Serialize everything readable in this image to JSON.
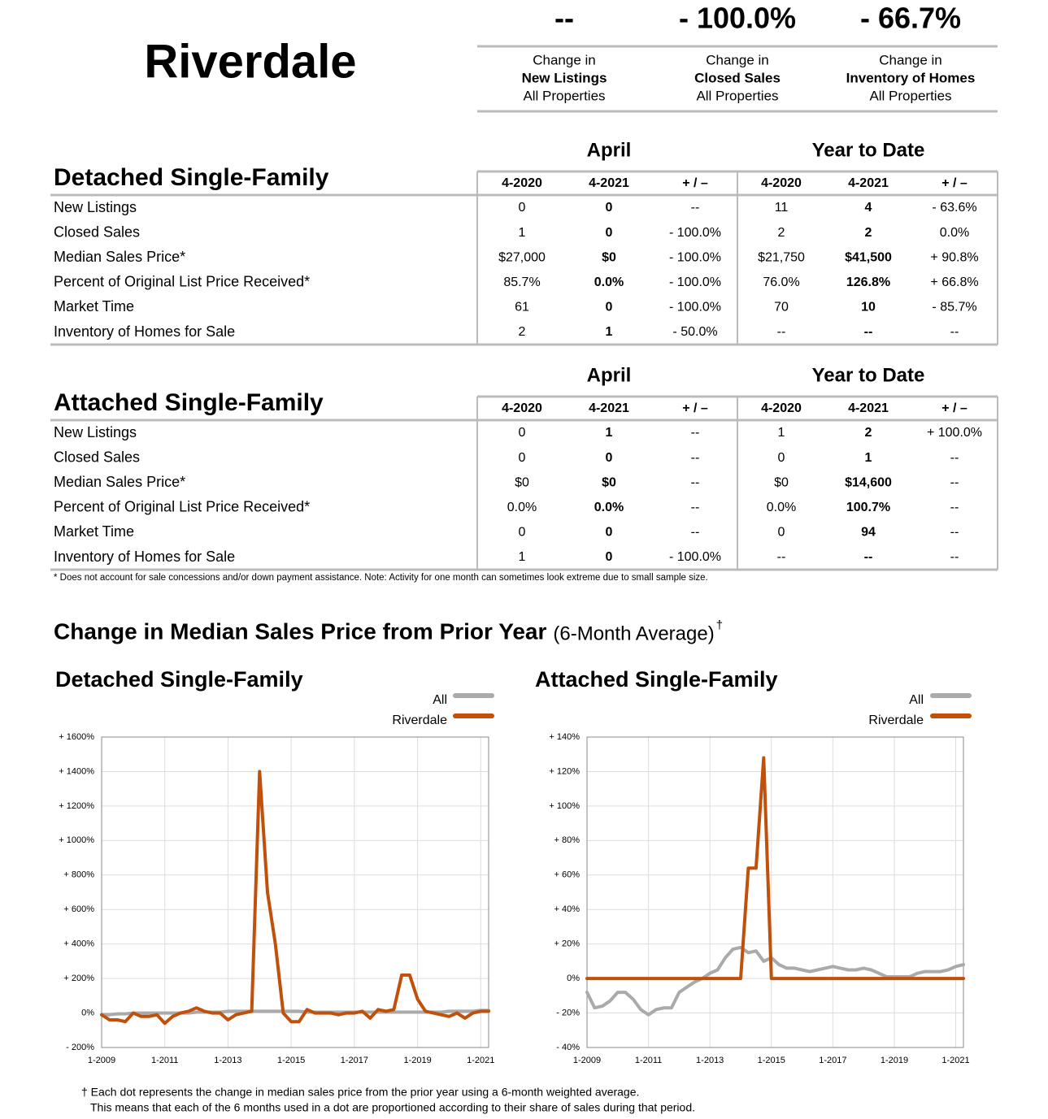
{
  "header": {
    "title": "Riverdale"
  },
  "summary": [
    {
      "value": "--",
      "lines": [
        "Change in",
        "New Listings",
        "All Properties"
      ]
    },
    {
      "value": "- 100.0%",
      "lines": [
        "Change in",
        "Closed Sales",
        "All Properties"
      ]
    },
    {
      "value": "- 66.7%",
      "lines": [
        "Change in",
        "Inventory of Homes",
        "All Properties"
      ]
    }
  ],
  "tables": [
    {
      "title": "Detached Single-Family",
      "groups": [
        "April",
        "Year to Date"
      ],
      "columns": [
        "4-2020",
        "4-2021",
        "+ / –",
        "4-2020",
        "4-2021",
        "+ / –"
      ],
      "rows": [
        [
          "New Listings",
          "0",
          "0",
          "--",
          "11",
          "4",
          "- 63.6%"
        ],
        [
          "Closed Sales",
          "1",
          "0",
          "- 100.0%",
          "2",
          "2",
          "0.0%"
        ],
        [
          "Median Sales Price*",
          "$27,000",
          "$0",
          "- 100.0%",
          "$21,750",
          "$41,500",
          "+ 90.8%"
        ],
        [
          "Percent of Original List Price Received*",
          "85.7%",
          "0.0%",
          "- 100.0%",
          "76.0%",
          "126.8%",
          "+ 66.8%"
        ],
        [
          "Market Time",
          "61",
          "0",
          "- 100.0%",
          "70",
          "10",
          "- 85.7%"
        ],
        [
          "Inventory of Homes for Sale",
          "2",
          "1",
          "- 50.0%",
          "--",
          "--",
          "--"
        ]
      ]
    },
    {
      "title": "Attached Single-Family",
      "groups": [
        "April",
        "Year to Date"
      ],
      "columns": [
        "4-2020",
        "4-2021",
        "+ / –",
        "4-2020",
        "4-2021",
        "+ / –"
      ],
      "rows": [
        [
          "New Listings",
          "0",
          "1",
          "--",
          "1",
          "2",
          "+ 100.0%"
        ],
        [
          "Closed Sales",
          "0",
          "0",
          "--",
          "0",
          "1",
          "--"
        ],
        [
          "Median Sales Price*",
          "$0",
          "$0",
          "--",
          "$0",
          "$14,600",
          "--"
        ],
        [
          "Percent of Original List Price Received*",
          "0.0%",
          "0.0%",
          "--",
          "0.0%",
          "100.7%",
          "--"
        ],
        [
          "Market Time",
          "0",
          "0",
          "--",
          "0",
          "94",
          "--"
        ],
        [
          "Inventory of Homes for Sale",
          "1",
          "0",
          "- 100.0%",
          "--",
          "--",
          "--"
        ]
      ]
    }
  ],
  "table_note": "* Does not account for sale concessions and/or down payment assistance. Note: Activity for one month can sometimes look extreme due to small sample size.",
  "chart_section": {
    "title": "Change in Median Sales Price from Prior Year",
    "subtitle": "(6-Month Average)",
    "mark": "†"
  },
  "chart_data": [
    {
      "type": "line",
      "title": "Detached Single-Family",
      "grid": true,
      "x": [
        2009,
        2009.25,
        2009.5,
        2009.75,
        2010,
        2010.25,
        2010.5,
        2010.75,
        2011,
        2011.25,
        2011.5,
        2011.75,
        2012,
        2012.25,
        2012.5,
        2012.75,
        2013,
        2013.25,
        2013.5,
        2013.75,
        2014,
        2014.25,
        2014.5,
        2014.75,
        2015,
        2015.25,
        2015.5,
        2015.75,
        2016,
        2016.25,
        2016.5,
        2016.75,
        2017,
        2017.25,
        2017.5,
        2017.75,
        2018,
        2018.25,
        2018.5,
        2018.75,
        2019,
        2019.25,
        2019.5,
        2019.75,
        2020,
        2020.25,
        2020.5,
        2020.75,
        2021,
        2021.25
      ],
      "series": [
        {
          "name": "All",
          "color": "#aaaaaa",
          "values": [
            -10,
            -10,
            -5,
            -5,
            0,
            0,
            0,
            0,
            0,
            0,
            0,
            0,
            5,
            5,
            5,
            5,
            10,
            10,
            10,
            10,
            10,
            10,
            10,
            10,
            10,
            10,
            5,
            5,
            5,
            5,
            5,
            5,
            5,
            5,
            5,
            5,
            5,
            5,
            5,
            5,
            5,
            5,
            5,
            5,
            10,
            10,
            10,
            10,
            15,
            15
          ]
        },
        {
          "name": "Riverdale",
          "color": "#c0500a",
          "values": [
            -10,
            -40,
            -40,
            -50,
            0,
            -20,
            -20,
            -10,
            -60,
            -20,
            0,
            10,
            30,
            10,
            0,
            0,
            -40,
            -10,
            0,
            10,
            1400,
            700,
            400,
            0,
            -50,
            -50,
            20,
            0,
            0,
            0,
            -10,
            0,
            0,
            10,
            -30,
            20,
            10,
            20,
            220,
            220,
            80,
            10,
            0,
            -10,
            -20,
            0,
            -30,
            0,
            10,
            10
          ]
        }
      ],
      "xlim": [
        2009,
        2021.25
      ],
      "xticks": [
        {
          "value": 2009,
          "label": "1-2009"
        },
        {
          "value": 2011,
          "label": "1-2011"
        },
        {
          "value": 2013,
          "label": "1-2013"
        },
        {
          "value": 2015,
          "label": "1-2015"
        },
        {
          "value": 2017,
          "label": "1-2017"
        },
        {
          "value": 2019,
          "label": "1-2019"
        },
        {
          "value": 2021,
          "label": "1-2021"
        }
      ],
      "ylim": [
        -200,
        1600
      ],
      "yticks": [
        {
          "value": -200,
          "label": "- 200%"
        },
        {
          "value": 0,
          "label": "0%"
        },
        {
          "value": 200,
          "label": "+ 200%"
        },
        {
          "value": 400,
          "label": "+ 400%"
        },
        {
          "value": 600,
          "label": "+ 600%"
        },
        {
          "value": 800,
          "label": "+ 800%"
        },
        {
          "value": 1000,
          "label": "+ 1000%"
        },
        {
          "value": 1200,
          "label": "+ 1200%"
        },
        {
          "value": 1400,
          "label": "+ 1400%"
        },
        {
          "value": 1600,
          "label": "+ 1600%"
        }
      ]
    },
    {
      "type": "line",
      "title": "Attached Single-Family",
      "grid": true,
      "x": [
        2009,
        2009.25,
        2009.5,
        2009.75,
        2010,
        2010.25,
        2010.5,
        2010.75,
        2011,
        2011.25,
        2011.5,
        2011.75,
        2012,
        2012.25,
        2012.5,
        2012.75,
        2013,
        2013.25,
        2013.5,
        2013.75,
        2014,
        2014.25,
        2014.5,
        2014.75,
        2015,
        2015.25,
        2015.5,
        2015.75,
        2016,
        2016.25,
        2016.5,
        2016.75,
        2017,
        2017.25,
        2017.5,
        2017.75,
        2018,
        2018.25,
        2018.5,
        2018.75,
        2019,
        2019.25,
        2019.5,
        2019.75,
        2020,
        2020.25,
        2020.5,
        2020.75,
        2021,
        2021.25
      ],
      "series": [
        {
          "name": "All",
          "color": "#aaaaaa",
          "values": [
            -8,
            -17,
            -16,
            -13,
            -8,
            -8,
            -12,
            -18,
            -21,
            -18,
            -17,
            -17,
            -8,
            -5,
            -2,
            0,
            3,
            5,
            12,
            17,
            18,
            15,
            16,
            10,
            12,
            8,
            6,
            6,
            5,
            4,
            5,
            6,
            7,
            6,
            5,
            5,
            6,
            5,
            3,
            1,
            1,
            1,
            1,
            3,
            4,
            4,
            4,
            5,
            7,
            8
          ]
        },
        {
          "name": "Riverdale",
          "color": "#c0500a",
          "values": [
            0,
            0,
            0,
            0,
            0,
            0,
            0,
            0,
            0,
            0,
            0,
            0,
            0,
            0,
            0,
            0,
            0,
            0,
            0,
            0,
            0,
            64,
            64,
            128,
            0,
            0,
            0,
            0,
            0,
            0,
            0,
            0,
            0,
            0,
            0,
            0,
            0,
            0,
            0,
            0,
            0,
            0,
            0,
            0,
            0,
            0,
            0,
            0,
            0,
            0
          ]
        }
      ],
      "xlim": [
        2009,
        2021.25
      ],
      "xticks": [
        {
          "value": 2009,
          "label": "1-2009"
        },
        {
          "value": 2011,
          "label": "1-2011"
        },
        {
          "value": 2013,
          "label": "1-2013"
        },
        {
          "value": 2015,
          "label": "1-2015"
        },
        {
          "value": 2017,
          "label": "1-2017"
        },
        {
          "value": 2019,
          "label": "1-2019"
        },
        {
          "value": 2021,
          "label": "1-2021"
        }
      ],
      "ylim": [
        -40,
        140
      ],
      "yticks": [
        {
          "value": -40,
          "label": "- 40%"
        },
        {
          "value": -20,
          "label": "- 20%"
        },
        {
          "value": 0,
          "label": "0%"
        },
        {
          "value": 20,
          "label": "+ 20%"
        },
        {
          "value": 40,
          "label": "+ 40%"
        },
        {
          "value": 60,
          "label": "+ 60%"
        },
        {
          "value": 80,
          "label": "+ 80%"
        },
        {
          "value": 100,
          "label": "+ 100%"
        },
        {
          "value": 120,
          "label": "+ 120%"
        },
        {
          "value": 140,
          "label": "+ 140%"
        }
      ]
    }
  ],
  "footer_notes": [
    "† Each dot represents the change in median sales price from the prior year using a 6-month weighted average.",
    "This means that each of the 6 months used in a dot are proportioned according to their share of sales during that period."
  ]
}
